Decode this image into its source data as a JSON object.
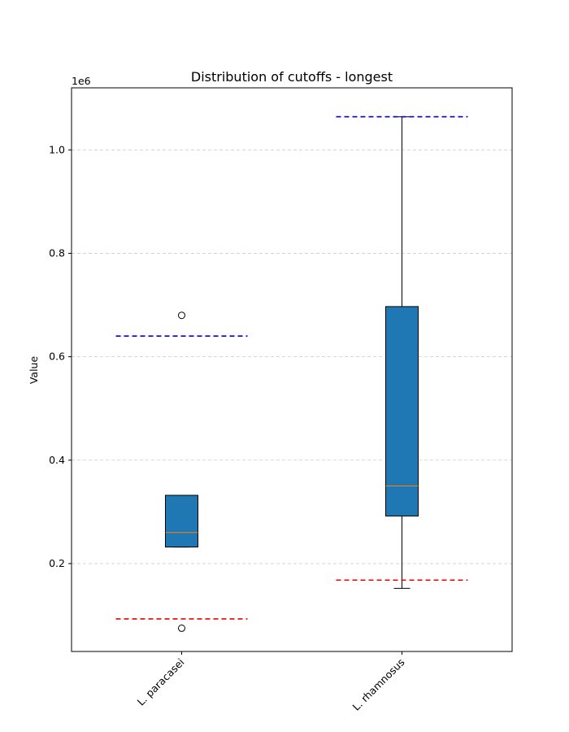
{
  "chart_data": {
    "type": "boxplot",
    "title": "Distribution of cutoffs - longest",
    "xlabel": "",
    "ylabel": "Value",
    "offset_label": "1e6",
    "ylim": [
      30000,
      1120000
    ],
    "yticks": [
      0.2,
      0.4,
      0.6,
      0.8,
      1.0
    ],
    "ytick_labels": [
      "0.2",
      "0.4",
      "0.6",
      "0.8",
      "1.0"
    ],
    "grid": "y-dashed",
    "categories": [
      "L. paracasei",
      "L. rhamnosus"
    ],
    "boxes": [
      {
        "name": "L. paracasei",
        "whisker_low": 232000,
        "q1": 232000,
        "median": 260000,
        "q3": 332000,
        "whisker_high": 332000,
        "outliers": [
          680000,
          75000
        ],
        "upper_cutoff": 640000,
        "lower_cutoff": 93000
      },
      {
        "name": "L. rhamnosus",
        "whisker_low": 152000,
        "q1": 292000,
        "median": 350000,
        "q3": 697000,
        "whisker_high": 1064000,
        "outliers": [],
        "upper_cutoff": 1064000,
        "lower_cutoff": 168000
      }
    ],
    "colors": {
      "box_fill": "#1f77b4",
      "median": "#ff7f0e",
      "upper_cutoff": "#0000cc",
      "lower_cutoff": "#ee0000",
      "grid": "#cccccc"
    }
  }
}
